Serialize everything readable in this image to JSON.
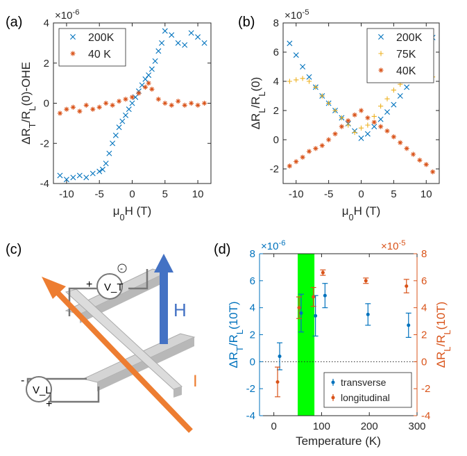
{
  "colors": {
    "blue": "#0072BD",
    "orange": "#D95319",
    "yellow": "#EDB120",
    "green": "#00FF00",
    "diagram_gray": "#8c8c8c"
  },
  "chart_data": [
    {
      "panel_label": "(a)",
      "type": "scatter",
      "ylabel": "ΔR_T/R_L(0)-OHE",
      "xlabel": "μ_0H (T)",
      "y_exponent": "×10^-6",
      "xlim": [
        -12,
        12
      ],
      "ylim": [
        -4,
        4
      ],
      "xticks": [
        "-10",
        "-5",
        "0",
        "5",
        "10"
      ],
      "yticks": [
        "-4",
        "-2",
        "0",
        "2",
        "4"
      ],
      "legend": {
        "position": "top-left"
      },
      "series": [
        {
          "name": "200K",
          "marker": "x",
          "color": "#0072BD",
          "x": [
            -11,
            -10,
            -9,
            -8,
            -7,
            -6,
            -5,
            -4.5,
            -4,
            -3.5,
            -3,
            -2.5,
            -2,
            -1.5,
            -1,
            -0.5,
            0,
            0.5,
            1,
            1.5,
            2,
            2.5,
            3,
            3.5,
            4,
            4.5,
            5,
            6,
            7,
            8,
            9,
            10,
            11
          ],
          "y": [
            -3.6,
            -3.8,
            -3.7,
            -3.6,
            -3.7,
            -3.5,
            -3.4,
            -3.3,
            -3.0,
            -2.5,
            -2.0,
            -1.6,
            -1.2,
            -0.9,
            -0.6,
            -0.3,
            0.0,
            0.3,
            0.6,
            0.9,
            1.2,
            1.4,
            1.7,
            2.1,
            2.6,
            3.0,
            3.6,
            3.4,
            3.0,
            2.9,
            3.5,
            3.3,
            3.0
          ]
        },
        {
          "name": "40 K",
          "marker": "*",
          "color": "#D95319",
          "x": [
            -11,
            -10,
            -9,
            -8,
            -7,
            -6,
            -5,
            -4,
            -3,
            -2,
            -1,
            0,
            1,
            2,
            2.5,
            3,
            4,
            5,
            6,
            7,
            8,
            9,
            10,
            11
          ],
          "y": [
            -0.5,
            -0.3,
            -0.2,
            -0.4,
            -0.1,
            -0.3,
            -0.2,
            0.0,
            -0.1,
            0.1,
            0.2,
            0.3,
            0.5,
            0.8,
            1.0,
            0.7,
            0.2,
            0.0,
            -0.1,
            0.1,
            -0.1,
            0.0,
            -0.1,
            0.0
          ]
        }
      ]
    },
    {
      "panel_label": "(b)",
      "type": "scatter",
      "ylabel": "ΔR_L/R_L(0)",
      "xlabel": "μ_0H (T)",
      "y_exponent": "×10^-5",
      "xlim": [
        -12,
        12
      ],
      "ylim": [
        -3,
        8
      ],
      "xticks": [
        "-10",
        "-5",
        "0",
        "5",
        "10"
      ],
      "yticks": [
        "-2",
        "0",
        "2",
        "4",
        "6",
        "8"
      ],
      "legend": {
        "position": "top-right"
      },
      "series": [
        {
          "name": "200K",
          "marker": "x",
          "color": "#0072BD",
          "x": [
            -11,
            -10,
            -9,
            -8,
            -7,
            -6,
            -5,
            -4,
            -3,
            -2,
            -1,
            0,
            1,
            2,
            3,
            4,
            5,
            6,
            7,
            8,
            9,
            10,
            11
          ],
          "y": [
            6.6,
            5.8,
            5.0,
            4.3,
            3.6,
            3.0,
            2.5,
            2.0,
            1.5,
            1.1,
            0.6,
            0.1,
            0.4,
            0.9,
            1.4,
            1.9,
            2.4,
            3.0,
            3.6,
            4.3,
            5.0,
            6.0,
            7.0
          ]
        },
        {
          "name": "75K",
          "marker": "+",
          "color": "#EDB120",
          "x": [
            -11,
            -10,
            -9,
            -8,
            -7,
            -6,
            -5,
            -4,
            -3,
            -2,
            -1,
            0,
            1,
            2,
            3,
            4,
            5,
            6,
            7,
            8,
            9,
            10,
            11
          ],
          "y": [
            4.0,
            4.1,
            4.2,
            4.0,
            3.6,
            3.0,
            2.5,
            2.0,
            1.5,
            1.0,
            0.5,
            0.8,
            1.0,
            1.6,
            2.3,
            2.8,
            3.4,
            3.8,
            4.3,
            4.5,
            4.7,
            4.9,
            4.3
          ]
        },
        {
          "name": "40K",
          "marker": "*",
          "color": "#D95319",
          "x": [
            -11,
            -10,
            -9,
            -8,
            -7,
            -6,
            -5,
            -4,
            -3,
            -2,
            -1,
            0,
            1,
            2,
            3,
            4,
            5,
            6,
            7,
            8,
            9,
            10,
            11
          ],
          "y": [
            -1.8,
            -1.5,
            -1.2,
            -0.8,
            -0.6,
            -0.4,
            0.0,
            0.4,
            0.9,
            1.3,
            1.7,
            2.0,
            1.5,
            1.2,
            0.9,
            0.6,
            0.2,
            -0.2,
            -0.6,
            -1.0,
            -1.4,
            -1.7,
            -2.2
          ]
        }
      ]
    },
    {
      "panel_label": "(d)",
      "type": "scatter",
      "xlabel": "Temperature (K)",
      "ylabel_left": "ΔR_T/R_L(10T)",
      "ylabel_right": "ΔR_L/R_L(10T)",
      "y_exponent_left": "×10^-6",
      "y_exponent_right": "×10^-5",
      "xlim": [
        -30,
        300
      ],
      "ylim": [
        -4,
        8
      ],
      "xticks": [
        "0",
        "100",
        "200",
        "300"
      ],
      "yticks_left": [
        "-4",
        "-2",
        "0",
        "2",
        "4",
        "6",
        "8"
      ],
      "yticks_right": [
        "-4",
        "-2",
        "0",
        "2",
        "4",
        "6",
        "8"
      ],
      "highlight_band_x": [
        50,
        85
      ],
      "legend": {
        "position": "bottom-right"
      },
      "series": [
        {
          "name": "transverse",
          "color": "#0072BD",
          "axis": "left",
          "x": [
            10,
            55,
            85,
            105,
            195,
            280
          ],
          "y": [
            0.4,
            3.6,
            3.4,
            4.9,
            3.5,
            2.7
          ],
          "err": [
            1.0,
            1.4,
            1.5,
            0.9,
            0.8,
            0.9
          ]
        },
        {
          "name": "longitudinal",
          "color": "#D95319",
          "axis": "right",
          "x": [
            10,
            55,
            85,
            105,
            195,
            280
          ],
          "y": [
            -1.5,
            4.0,
            4.8,
            6.6,
            6.0,
            5.6
          ],
          "err": [
            1.1,
            0.8,
            0.7,
            0.2,
            0.2,
            0.5
          ]
        }
      ]
    }
  ],
  "diagram": {
    "panel_label": "(c)",
    "voltage_transverse": "V_T",
    "voltage_longitudinal": "V_L",
    "plus": "+",
    "minus": "-",
    "field_label": "H",
    "current_label": "I"
  }
}
